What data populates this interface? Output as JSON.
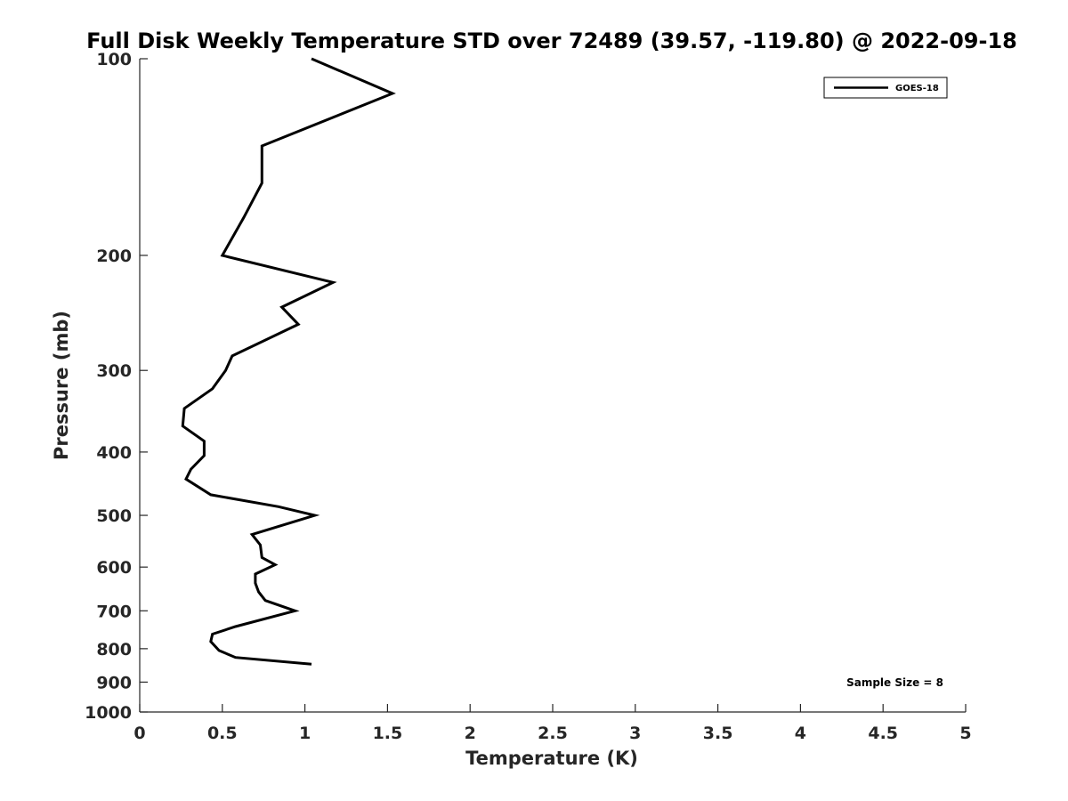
{
  "chart_data": {
    "type": "line",
    "title": "Full Disk Weekly Temperature STD over 72489 (39.57, -119.80) @ 2022-09-18",
    "xlabel": "Temperature (K)",
    "ylabel": "Pressure (mb)",
    "xlim": [
      0,
      5
    ],
    "ylim": [
      100,
      1000
    ],
    "y_scale": "log",
    "y_reversed": true,
    "x_ticks": [
      "0",
      "0.5",
      "1",
      "1.5",
      "2",
      "2.5",
      "3",
      "3.5",
      "4",
      "4.5",
      "5"
    ],
    "y_ticks": [
      "100",
      "200",
      "300",
      "400",
      "500",
      "600",
      "700",
      "800",
      "900",
      "1000"
    ],
    "grid": false,
    "legend_position": "top-right",
    "annotation": "Sample Size = 8",
    "series": [
      {
        "name": "GOES-18",
        "color": "#000000",
        "points": [
          [
            1.04,
            100
          ],
          [
            1.53,
            113
          ],
          [
            0.74,
            136
          ],
          [
            0.74,
            155
          ],
          [
            0.63,
            175
          ],
          [
            0.5,
            200
          ],
          [
            1.17,
            220
          ],
          [
            0.86,
            240
          ],
          [
            0.96,
            255
          ],
          [
            0.56,
            285
          ],
          [
            0.52,
            300
          ],
          [
            0.44,
            320
          ],
          [
            0.27,
            343
          ],
          [
            0.26,
            365
          ],
          [
            0.39,
            385
          ],
          [
            0.39,
            405
          ],
          [
            0.31,
            425
          ],
          [
            0.28,
            440
          ],
          [
            0.43,
            465
          ],
          [
            0.84,
            485
          ],
          [
            1.06,
            500
          ],
          [
            0.68,
            535
          ],
          [
            0.73,
            555
          ],
          [
            0.74,
            580
          ],
          [
            0.82,
            595
          ],
          [
            0.7,
            615
          ],
          [
            0.7,
            635
          ],
          [
            0.72,
            655
          ],
          [
            0.76,
            675
          ],
          [
            0.94,
            700
          ],
          [
            0.58,
            740
          ],
          [
            0.44,
            760
          ],
          [
            0.43,
            780
          ],
          [
            0.48,
            805
          ],
          [
            0.58,
            825
          ],
          [
            1.04,
            845
          ]
        ]
      }
    ]
  }
}
